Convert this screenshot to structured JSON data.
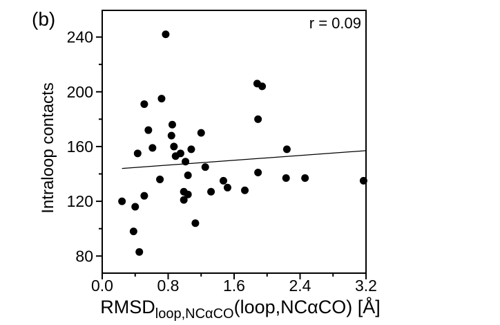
{
  "chart_data": {
    "type": "scatter",
    "panel_label": "(b)",
    "annotation": "r = 0.09",
    "xlabel": {
      "main": "RMSD",
      "subscript": "loop,NCαCO",
      "rest": "(loop,NCαCO) [Å]"
    },
    "ylabel": "Intraloop contacts",
    "x_range": [
      0,
      3.2
    ],
    "y_range": [
      67.5,
      259.5
    ],
    "x_major_ticks": [
      0,
      0.8,
      1.6,
      2.4,
      3.2
    ],
    "x_major_tick_labels": [
      "0.0",
      "0.8",
      "1.6",
      "2.4",
      "3.2"
    ],
    "x_minor_ticks": [
      0.4,
      1.2,
      2.0,
      2.8
    ],
    "y_major_ticks": [
      80,
      120,
      160,
      200,
      240
    ],
    "y_major_tick_labels": [
      "80",
      "120",
      "160",
      "200",
      "240"
    ],
    "y_minor_ticks": [
      100,
      140,
      180,
      220
    ],
    "grid": false,
    "legend": "none",
    "marker": {
      "shape": "circle",
      "radius_px": 5.5,
      "color": "#000000"
    },
    "points": [
      [
        0.77,
        242
      ],
      [
        0.72,
        195
      ],
      [
        0.51,
        191
      ],
      [
        0.85,
        176
      ],
      [
        0.56,
        172
      ],
      [
        0.84,
        168
      ],
      [
        1.2,
        170
      ],
      [
        1.88,
        206
      ],
      [
        1.94,
        204
      ],
      [
        1.89,
        180
      ],
      [
        0.43,
        155
      ],
      [
        0.61,
        159
      ],
      [
        0.87,
        160
      ],
      [
        0.95,
        155
      ],
      [
        0.89,
        153
      ],
      [
        1.08,
        158
      ],
      [
        1.01,
        149
      ],
      [
        1.25,
        145
      ],
      [
        1.04,
        139
      ],
      [
        0.7,
        136
      ],
      [
        1.47,
        135
      ],
      [
        1.52,
        130
      ],
      [
        1.32,
        127
      ],
      [
        0.99,
        127
      ],
      [
        1.04,
        125
      ],
      [
        0.99,
        121
      ],
      [
        0.24,
        120
      ],
      [
        0.51,
        124
      ],
      [
        0.4,
        116
      ],
      [
        1.13,
        104
      ],
      [
        0.38,
        98
      ],
      [
        0.45,
        83
      ],
      [
        2.24,
        158
      ],
      [
        1.89,
        141
      ],
      [
        1.73,
        128
      ],
      [
        2.23,
        137
      ],
      [
        2.46,
        137
      ],
      [
        3.17,
        135
      ]
    ],
    "fit_line": {
      "x1": 0.24,
      "y1": 144,
      "x2": 3.2,
      "y2": 157
    },
    "colors": {
      "foreground": "#000000",
      "background": "#ffffff"
    }
  }
}
